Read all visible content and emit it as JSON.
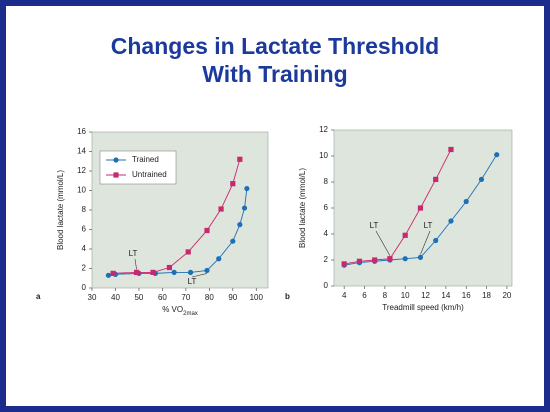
{
  "title": [
    "Changes in Lactate Threshold",
    "With Training"
  ],
  "chart_data": [
    {
      "type": "line",
      "panel": "a",
      "xlabel": "% VO",
      "xlabel_sub": "2max",
      "ylabel": "Blood lactate (mmol/L)",
      "xlim": [
        30,
        105
      ],
      "xticks": [
        30,
        40,
        50,
        60,
        70,
        80,
        90,
        100
      ],
      "ylim": [
        0,
        16
      ],
      "yticks": [
        0,
        2,
        4,
        6,
        8,
        10,
        12,
        14,
        16
      ],
      "legend": "upper left",
      "annotations": [
        "LT",
        "LT"
      ],
      "series": [
        {
          "name": "Trained",
          "color": "#1f6fb5",
          "x": [
            37,
            40,
            50,
            57,
            65,
            72,
            79,
            84,
            90,
            93,
            95,
            96
          ],
          "values": [
            1.3,
            1.4,
            1.5,
            1.5,
            1.6,
            1.6,
            1.8,
            3,
            4.8,
            6.5,
            8.2,
            10.2
          ]
        },
        {
          "name": "Untrained",
          "color": "#c8286e",
          "x": [
            39,
            49,
            56,
            63,
            71,
            79,
            85,
            90,
            93
          ],
          "values": [
            1.5,
            1.6,
            1.6,
            2.1,
            3.7,
            5.9,
            8.1,
            10.7,
            13.2
          ]
        }
      ]
    },
    {
      "type": "line",
      "panel": "b",
      "xlabel": "Treadmill speed (km/h)",
      "ylabel": "Blood lactate (mmol/L)",
      "xlim": [
        3,
        20.5
      ],
      "xticks": [
        4,
        6,
        8,
        10,
        12,
        14,
        16,
        18,
        20
      ],
      "ylim": [
        0,
        12
      ],
      "yticks": [
        0,
        2,
        4,
        6,
        8,
        10,
        12
      ],
      "annotations": [
        "LT",
        "LT"
      ],
      "series": [
        {
          "name": "Trained",
          "color": "#1f6fb5",
          "x": [
            4,
            5.5,
            7,
            8.5,
            10,
            11.5,
            13,
            14.5,
            16,
            17.5,
            19
          ],
          "values": [
            1.6,
            1.8,
            1.9,
            2,
            2.1,
            2.2,
            3.5,
            5,
            6.5,
            8.2,
            10.1
          ]
        },
        {
          "name": "Untrained",
          "color": "#c8286e",
          "x": [
            4,
            5.5,
            7,
            8.5,
            10,
            11.5,
            13,
            14.5
          ],
          "values": [
            1.7,
            1.9,
            2,
            2.1,
            3.9,
            6,
            8.2,
            10.5
          ]
        }
      ]
    }
  ]
}
